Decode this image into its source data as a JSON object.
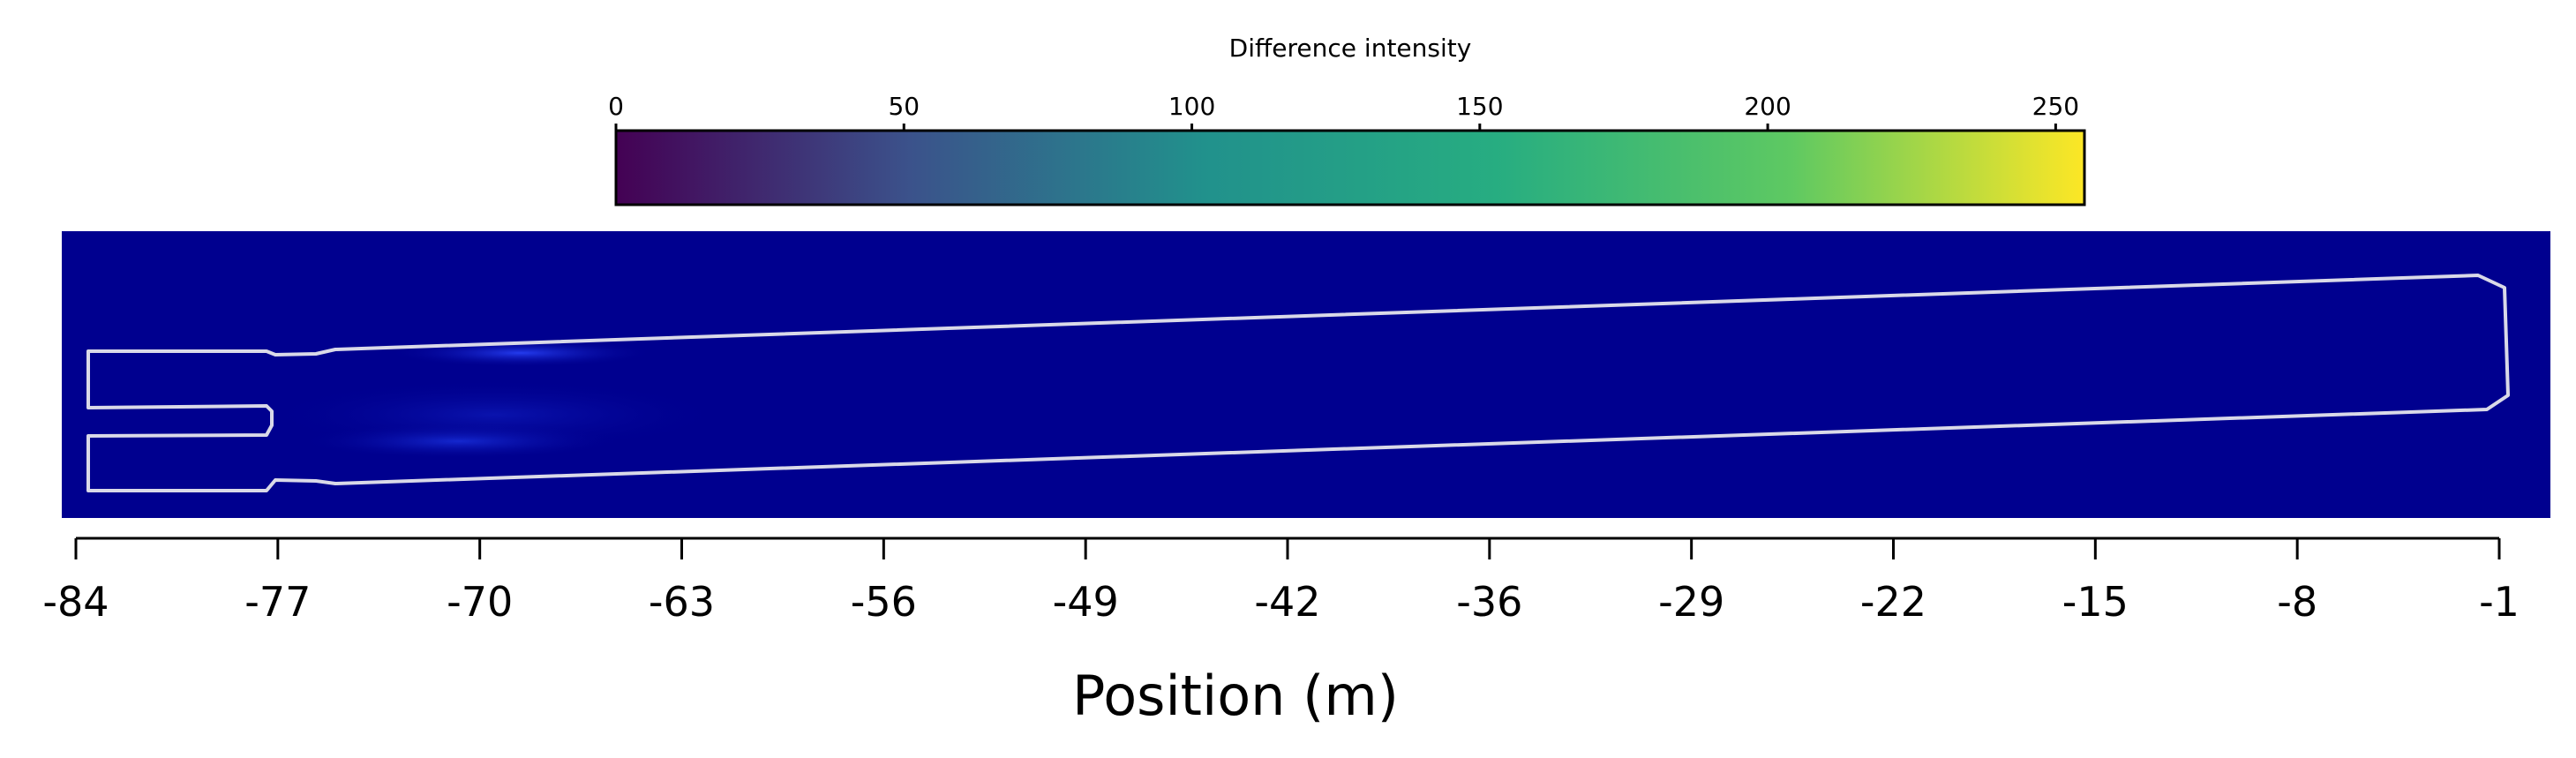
{
  "chart_data": {
    "type": "heatmap",
    "xlabel": "Position (m)",
    "x_ticks": [
      "-84",
      "-77",
      "-70",
      "-63",
      "-56",
      "-49",
      "-42",
      "-36",
      "-29",
      "-22",
      "-15",
      "-8",
      "-1"
    ],
    "xlim": [
      -84,
      -1
    ],
    "colorbar": {
      "title": "Difference intensity",
      "ticks": [
        "0",
        "50",
        "100",
        "150",
        "200",
        "250"
      ],
      "range": [
        0,
        255
      ],
      "colormap": "viridis",
      "colors": [
        "#440154",
        "#3b528b",
        "#21918c",
        "#27ad81",
        "#5ec962",
        "#fde725"
      ]
    },
    "background_color": "#00008f",
    "outline_color": "#d9d9e8",
    "highlight_color": "#1a2fd6",
    "grid": false
  }
}
